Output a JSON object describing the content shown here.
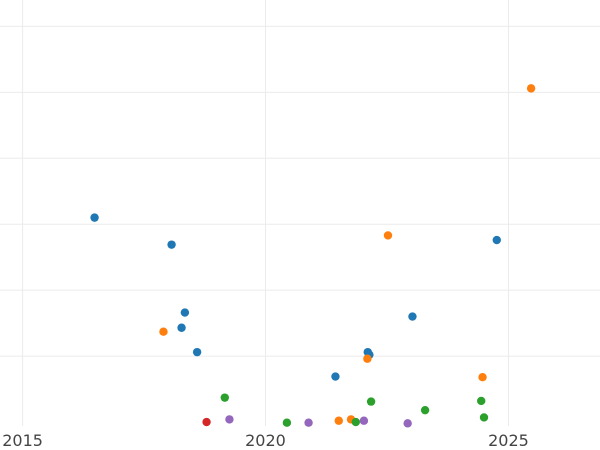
{
  "chart_data": {
    "type": "scatter",
    "title": "",
    "xlabel": "",
    "ylabel": "",
    "x_axis": {
      "type": "date",
      "ticks": [
        "2015",
        "2020",
        "2025"
      ],
      "range": [
        "2014-07-15",
        "2026-11-20"
      ]
    },
    "y_axis": {
      "range": [
        -0.06,
        6.4
      ],
      "gridlines": [
        1,
        2,
        3,
        4,
        5,
        6
      ],
      "tick_labels_visible": false
    },
    "grid": true,
    "legend": "none",
    "series": [
      {
        "color": "#1f77b4",
        "points": [
          {
            "x": "2016-06-25",
            "y": 3.1
          },
          {
            "x": "2018-01-25",
            "y": 2.69
          },
          {
            "x": "2018-04-10",
            "y": 1.43
          },
          {
            "x": "2018-05-05",
            "y": 1.66
          },
          {
            "x": "2018-08-05",
            "y": 1.06
          },
          {
            "x": "2021-06-10",
            "y": 0.69
          },
          {
            "x": "2022-02-08",
            "y": 1.06
          },
          {
            "x": "2022-02-20",
            "y": 1.02
          },
          {
            "x": "2023-01-10",
            "y": 1.6
          },
          {
            "x": "2024-10-05",
            "y": 2.76
          }
        ]
      },
      {
        "color": "#ff7f0e",
        "points": [
          {
            "x": "2017-11-25",
            "y": 1.37
          },
          {
            "x": "2021-07-05",
            "y": 0.02
          },
          {
            "x": "2021-10-05",
            "y": 0.04
          },
          {
            "x": "2022-02-05",
            "y": 0.96
          },
          {
            "x": "2022-07-10",
            "y": 2.83
          },
          {
            "x": "2024-06-20",
            "y": 0.68
          },
          {
            "x": "2025-06-20",
            "y": 5.06
          }
        ]
      },
      {
        "color": "#2ca02c",
        "points": [
          {
            "x": "2019-03-01",
            "y": 0.37
          },
          {
            "x": "2020-06-10",
            "y": -0.01
          },
          {
            "x": "2021-11-10",
            "y": 0.0
          },
          {
            "x": "2022-03-05",
            "y": 0.31
          },
          {
            "x": "2023-04-15",
            "y": 0.18
          },
          {
            "x": "2024-06-10",
            "y": 0.32
          },
          {
            "x": "2024-07-01",
            "y": 0.07
          }
        ]
      },
      {
        "color": "#d62728",
        "points": [
          {
            "x": "2018-10-15",
            "y": 0.0
          }
        ]
      },
      {
        "color": "#9467bd",
        "points": [
          {
            "x": "2019-04-05",
            "y": 0.04
          },
          {
            "x": "2020-11-20",
            "y": -0.01
          },
          {
            "x": "2022-01-10",
            "y": 0.02
          },
          {
            "x": "2022-12-05",
            "y": -0.02
          }
        ]
      }
    ]
  }
}
